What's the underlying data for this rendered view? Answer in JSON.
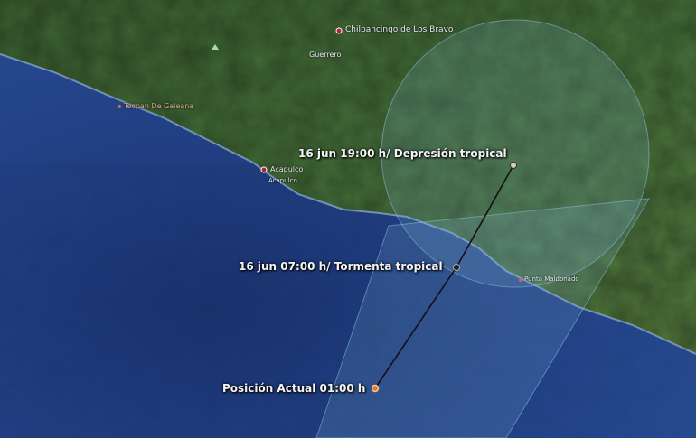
{
  "places": [
    {
      "name": "Chilpancingo de Los Bravo"
    },
    {
      "name": "Guerrero"
    },
    {
      "name": "Tecpan De Galeana"
    },
    {
      "name": "Acapulco"
    },
    {
      "name": "Acapulco"
    },
    {
      "name": "Punta Maldonado"
    }
  ],
  "track": [
    {
      "label": "16 jun 19:00 h/ Depresión tropical"
    },
    {
      "label": "16 jun 07:00 h/ Tormenta tropical"
    },
    {
      "label": "Posición Actual 01:00 h"
    }
  ],
  "colors": {
    "ocean": "#1f3a7a",
    "land": "#3f6a35",
    "cone": "#6fa8c8",
    "track": "#111111",
    "current_marker": "#e8742a"
  }
}
